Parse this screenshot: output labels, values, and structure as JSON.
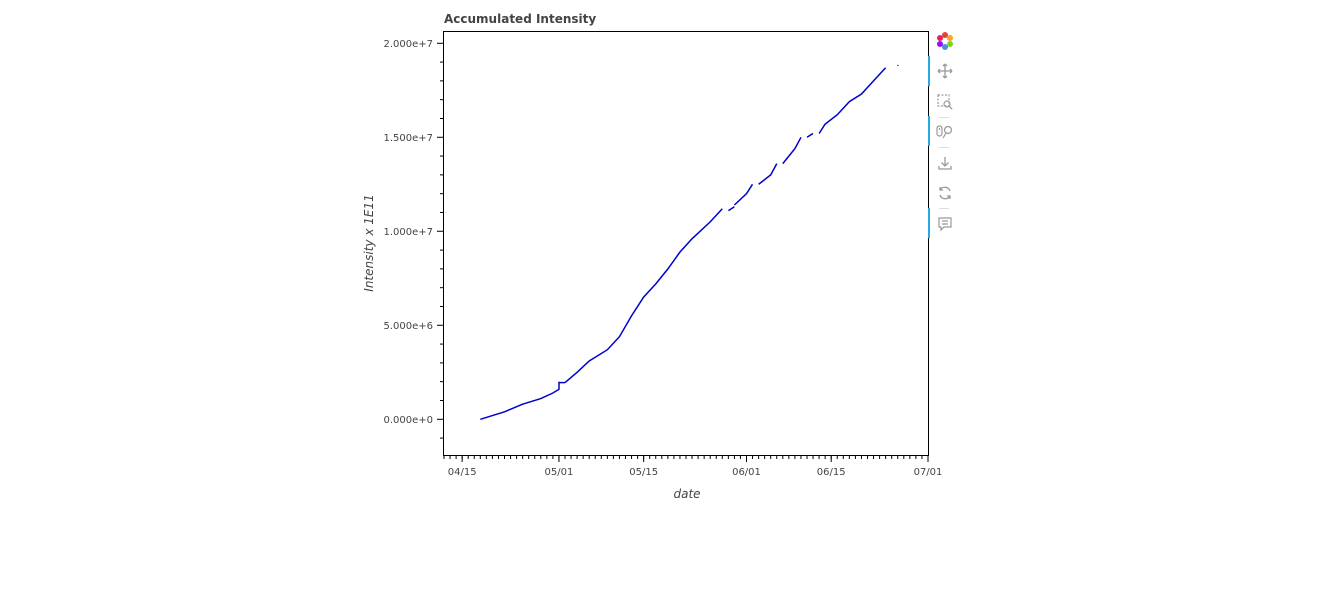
{
  "chart_data": {
    "type": "line",
    "title": "Accumulated Intensity",
    "xlabel": "date",
    "ylabel": "Intensity x 1E11",
    "x_tick_labels": [
      "04/15",
      "05/01",
      "05/15",
      "06/01",
      "06/15",
      "07/01"
    ],
    "y_tick_labels": [
      "0.000e+0",
      "5.000e+6",
      "1.000e+7",
      "1.500e+7",
      "2.000e+7"
    ],
    "xlim": [
      "2020-04-12",
      "2020-07-01"
    ],
    "ylim": [
      -1900000,
      20600000
    ],
    "grid": false,
    "series": [
      {
        "color": "#0000cc",
        "segments": [
          [
            [
              "2020-04-18",
              0
            ],
            [
              "2020-04-22",
              400000
            ],
            [
              "2020-04-25",
              800000
            ],
            [
              "2020-04-28",
              1100000
            ],
            [
              "2020-04-30",
              1400000
            ],
            [
              "2020-05-01",
              1600000
            ],
            [
              "2020-05-01",
              2000000
            ]
          ],
          [
            [
              "2020-05-01",
              1950000
            ],
            [
              "2020-05-02",
              1950000
            ]
          ],
          [
            [
              "2020-05-02",
              1950000
            ],
            [
              "2020-05-04",
              2500000
            ],
            [
              "2020-05-06",
              3100000
            ],
            [
              "2020-05-09",
              3700000
            ],
            [
              "2020-05-11",
              4400000
            ],
            [
              "2020-05-13",
              5500000
            ],
            [
              "2020-05-15",
              6500000
            ],
            [
              "2020-05-17",
              7200000
            ],
            [
              "2020-05-19",
              8000000
            ],
            [
              "2020-05-21",
              8900000
            ],
            [
              "2020-05-23",
              9600000
            ],
            [
              "2020-05-26",
              10500000
            ],
            [
              "2020-05-28",
              11200000
            ]
          ],
          [
            [
              "2020-05-29",
              11100000
            ],
            [
              "2020-05-30",
              11300000
            ]
          ],
          [
            [
              "2020-05-30",
              11400000
            ],
            [
              "2020-06-01",
              12000000
            ],
            [
              "2020-06-02",
              12500000
            ]
          ],
          [
            [
              "2020-06-03",
              12500000
            ],
            [
              "2020-06-05",
              13000000
            ],
            [
              "2020-06-06",
              13600000
            ]
          ],
          [
            [
              "2020-06-07",
              13600000
            ],
            [
              "2020-06-09",
              14400000
            ],
            [
              "2020-06-10",
              15000000
            ]
          ],
          [
            [
              "2020-06-11",
              15000000
            ],
            [
              "2020-06-12",
              15200000
            ]
          ],
          [
            [
              "2020-06-13",
              15200000
            ],
            [
              "2020-06-14",
              15700000
            ],
            [
              "2020-06-16",
              16200000
            ],
            [
              "2020-06-18",
              16900000
            ],
            [
              "2020-06-20",
              17300000
            ],
            [
              "2020-06-22",
              18000000
            ],
            [
              "2020-06-24",
              18700000
            ]
          ],
          [
            [
              "2020-06-26",
              18800000
            ],
            [
              "2020-06-26",
              18850000
            ]
          ]
        ]
      }
    ]
  },
  "toolbar": {
    "tools": [
      {
        "name": "bokeh-logo-icon",
        "interactable": true
      },
      {
        "name": "pan-icon",
        "interactable": true,
        "active": true
      },
      {
        "name": "box-zoom-icon",
        "interactable": true
      },
      {
        "name": "wheel-zoom-icon",
        "interactable": true,
        "active": true
      },
      {
        "name": "save-icon",
        "interactable": true
      },
      {
        "name": "reset-icon",
        "interactable": true
      },
      {
        "name": "hover-icon",
        "interactable": true,
        "active": true
      }
    ]
  }
}
